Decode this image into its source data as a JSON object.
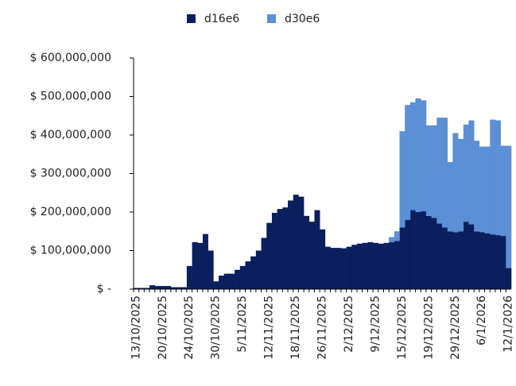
{
  "chart_data": {
    "type": "stacked-bar",
    "categories": [
      "13/10/2025",
      null,
      null,
      null,
      null,
      "20/10/2025",
      null,
      null,
      null,
      null,
      "24/10/2025",
      null,
      null,
      null,
      null,
      "30/10/2025",
      null,
      null,
      null,
      null,
      "5/11/2025",
      null,
      null,
      null,
      null,
      "12/11/2025",
      null,
      null,
      null,
      null,
      "18/11/2025",
      null,
      null,
      null,
      null,
      "26/11/2025",
      null,
      null,
      null,
      null,
      "2/12/2025",
      null,
      null,
      null,
      null,
      "9/12/2025",
      null,
      null,
      null,
      null,
      "15/12/2025",
      null,
      null,
      null,
      null,
      "19/12/2025",
      null,
      null,
      null,
      null,
      "29/12/2025",
      null,
      null,
      null,
      null,
      "6/1/2026",
      null,
      null,
      null,
      null,
      "12/1/2026"
    ],
    "series": [
      {
        "name": "d16e6",
        "color": "#0b1f5e",
        "values": [
          3000000,
          3000000,
          3000000,
          10000000,
          8000000,
          8000000,
          8000000,
          5000000,
          5000000,
          5000000,
          60000000,
          122000000,
          120000000,
          143000000,
          100000000,
          20000000,
          35000000,
          40000000,
          40000000,
          50000000,
          60000000,
          72000000,
          85000000,
          100000000,
          133000000,
          172000000,
          198000000,
          208000000,
          212000000,
          230000000,
          245000000,
          240000000,
          190000000,
          175000000,
          205000000,
          155000000,
          110000000,
          107000000,
          107000000,
          106000000,
          110000000,
          115000000,
          118000000,
          120000000,
          122000000,
          120000000,
          118000000,
          120000000,
          122000000,
          125000000,
          160000000,
          180000000,
          205000000,
          200000000,
          202000000,
          190000000,
          185000000,
          170000000,
          160000000,
          150000000,
          148000000,
          150000000,
          175000000,
          168000000,
          150000000,
          148000000,
          145000000,
          142000000,
          140000000,
          138000000,
          55000000
        ]
      },
      {
        "name": "d30e6",
        "color": "#5b8fd6",
        "values": [
          0,
          0,
          0,
          0,
          0,
          0,
          0,
          0,
          0,
          0,
          0,
          0,
          0,
          0,
          0,
          0,
          0,
          0,
          0,
          0,
          0,
          0,
          0,
          0,
          0,
          0,
          0,
          0,
          0,
          0,
          0,
          0,
          0,
          0,
          0,
          0,
          0,
          0,
          0,
          0,
          0,
          0,
          0,
          0,
          0,
          0,
          0,
          0,
          13000000,
          25000000,
          250000000,
          298000000,
          280000000,
          295000000,
          288000000,
          235000000,
          240000000,
          275000000,
          285000000,
          180000000,
          257000000,
          240000000,
          252000000,
          270000000,
          235000000,
          222000000,
          225000000,
          298000000,
          298000000,
          234000000,
          317000000
        ]
      }
    ],
    "ylim": [
      0,
      600000000
    ],
    "yticks": [
      {
        "value": 0,
        "label": "$ -"
      },
      {
        "value": 100000000,
        "label": "$ 100,000,000"
      },
      {
        "value": 200000000,
        "label": "$ 200,000,000"
      },
      {
        "value": 300000000,
        "label": "$ 300,000,000"
      },
      {
        "value": 400000000,
        "label": "$ 400,000,000"
      },
      {
        "value": 500000000,
        "label": "$ 500,000,000"
      },
      {
        "value": 600000000,
        "label": "$ 600,000,000"
      }
    ],
    "legend": "top"
  }
}
